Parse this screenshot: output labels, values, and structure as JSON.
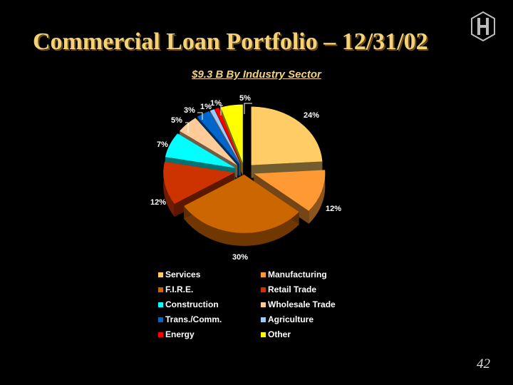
{
  "title": "Commercial Loan Portfolio – 12/31/02",
  "page_number": "42",
  "chart_data": {
    "type": "pie",
    "title": "Commercial Loan Portfolio – 12/31/02",
    "subtitle": "$9.3 B By Industry Sector",
    "categories": [
      "Services",
      "Manufacturing",
      "F.I.R.E.",
      "Retail Trade",
      "Construction",
      "Wholesale Trade",
      "Trans./Comm.",
      "Agriculture",
      "Energy",
      "Other"
    ],
    "values": [
      24,
      12,
      30,
      12,
      7,
      5,
      3,
      1,
      1,
      5
    ],
    "value_labels": [
      "24%",
      "12%",
      "30%",
      "12%",
      "7%",
      "5%",
      "3%",
      "1%",
      "1%",
      "5%"
    ],
    "colors": [
      "#ffcc66",
      "#ff9933",
      "#cc6600",
      "#cc3300",
      "#00ffff",
      "#ffcc99",
      "#0066cc",
      "#99ccff",
      "#ff0000",
      "#ffff00"
    ],
    "legend_position": "bottom"
  }
}
